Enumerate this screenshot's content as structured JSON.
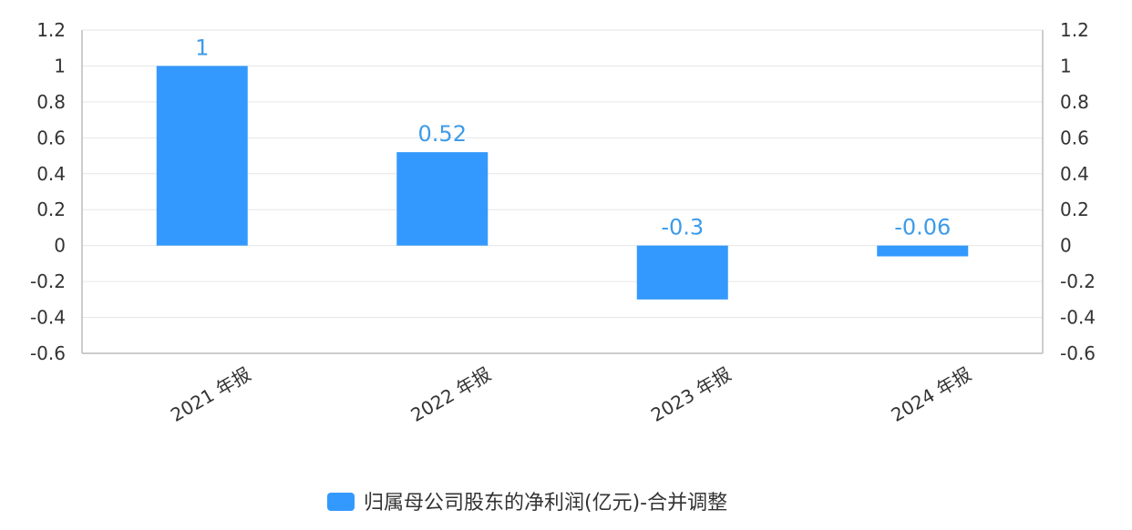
{
  "chart_data": {
    "type": "bar",
    "categories": [
      "2021 年报",
      "2022 年报",
      "2023 年报",
      "2024 年报"
    ],
    "series": [
      {
        "name": "归属母公司股东的净利润(亿元)-合并调整",
        "values": [
          1,
          0.52,
          -0.3,
          -0.06
        ],
        "data_labels": [
          "1",
          "0.52",
          "-0.3",
          "-0.06"
        ]
      }
    ],
    "ylim": [
      -0.6,
      1.2
    ],
    "yticks": [
      1.2,
      1,
      0.8,
      0.6,
      0.4,
      0.2,
      0,
      -0.2,
      -0.4,
      -0.6
    ],
    "ytick_labels": [
      "1.2",
      "1",
      "0.8",
      "0.6",
      "0.4",
      "0.2",
      "0",
      "-0.2",
      "-0.4",
      "-0.6"
    ],
    "secondary_y_axis": true,
    "grid": true,
    "legend_position": "bottom-center",
    "colors": {
      "bar": "#3399FF",
      "data_label": "#3D9BE9",
      "grid": "#E6E6E6",
      "axis": "#CCCCCC"
    }
  }
}
